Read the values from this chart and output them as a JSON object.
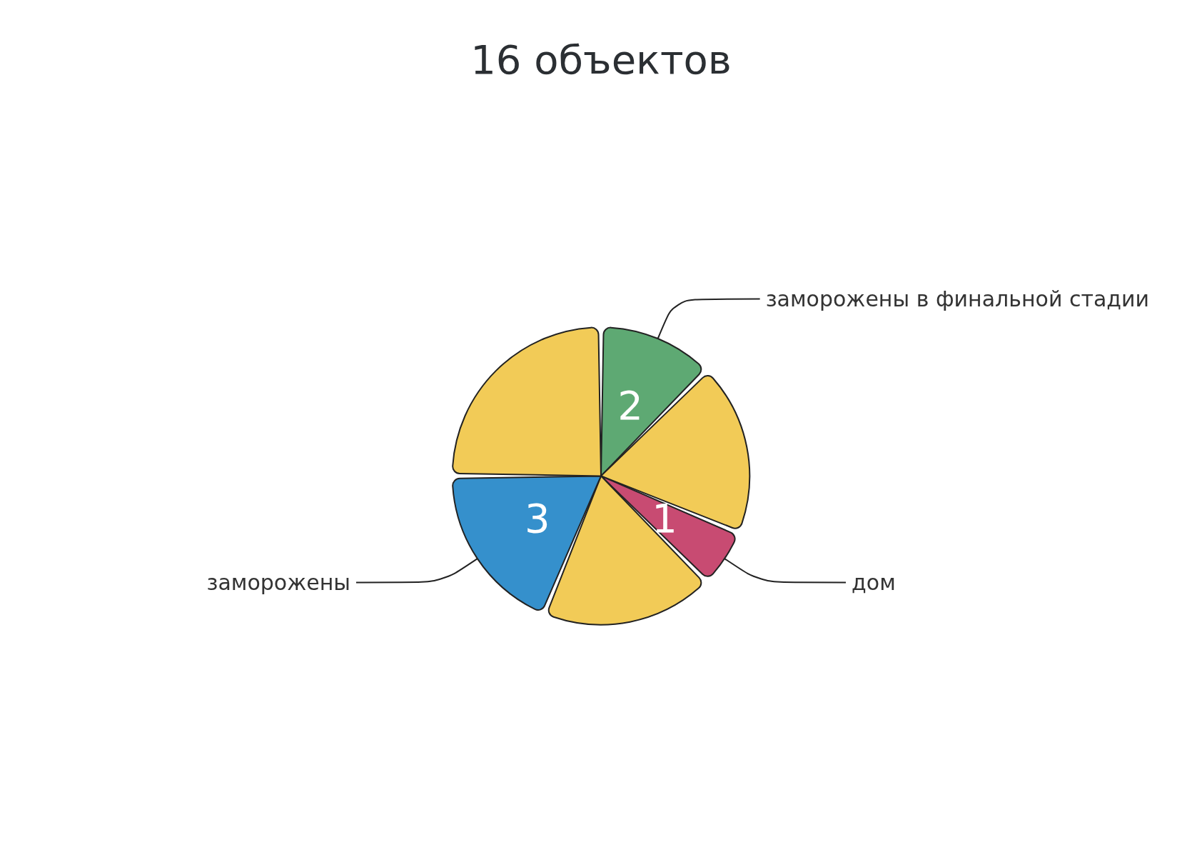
{
  "chart_data": {
    "type": "pie",
    "title": "16 объектов",
    "categories": [
      "заморожены в финальной стадии",
      null,
      "дом",
      null,
      "заморожены",
      null
    ],
    "values": [
      2,
      3,
      1,
      3,
      3,
      4
    ],
    "colors": [
      "#5ea973",
      "#f2cb57",
      "#c84b72",
      "#f2cb57",
      "#3590cc",
      "#f2cb57"
    ],
    "value_labels": [
      "2",
      null,
      "1",
      null,
      "3",
      null
    ],
    "legend": false
  }
}
